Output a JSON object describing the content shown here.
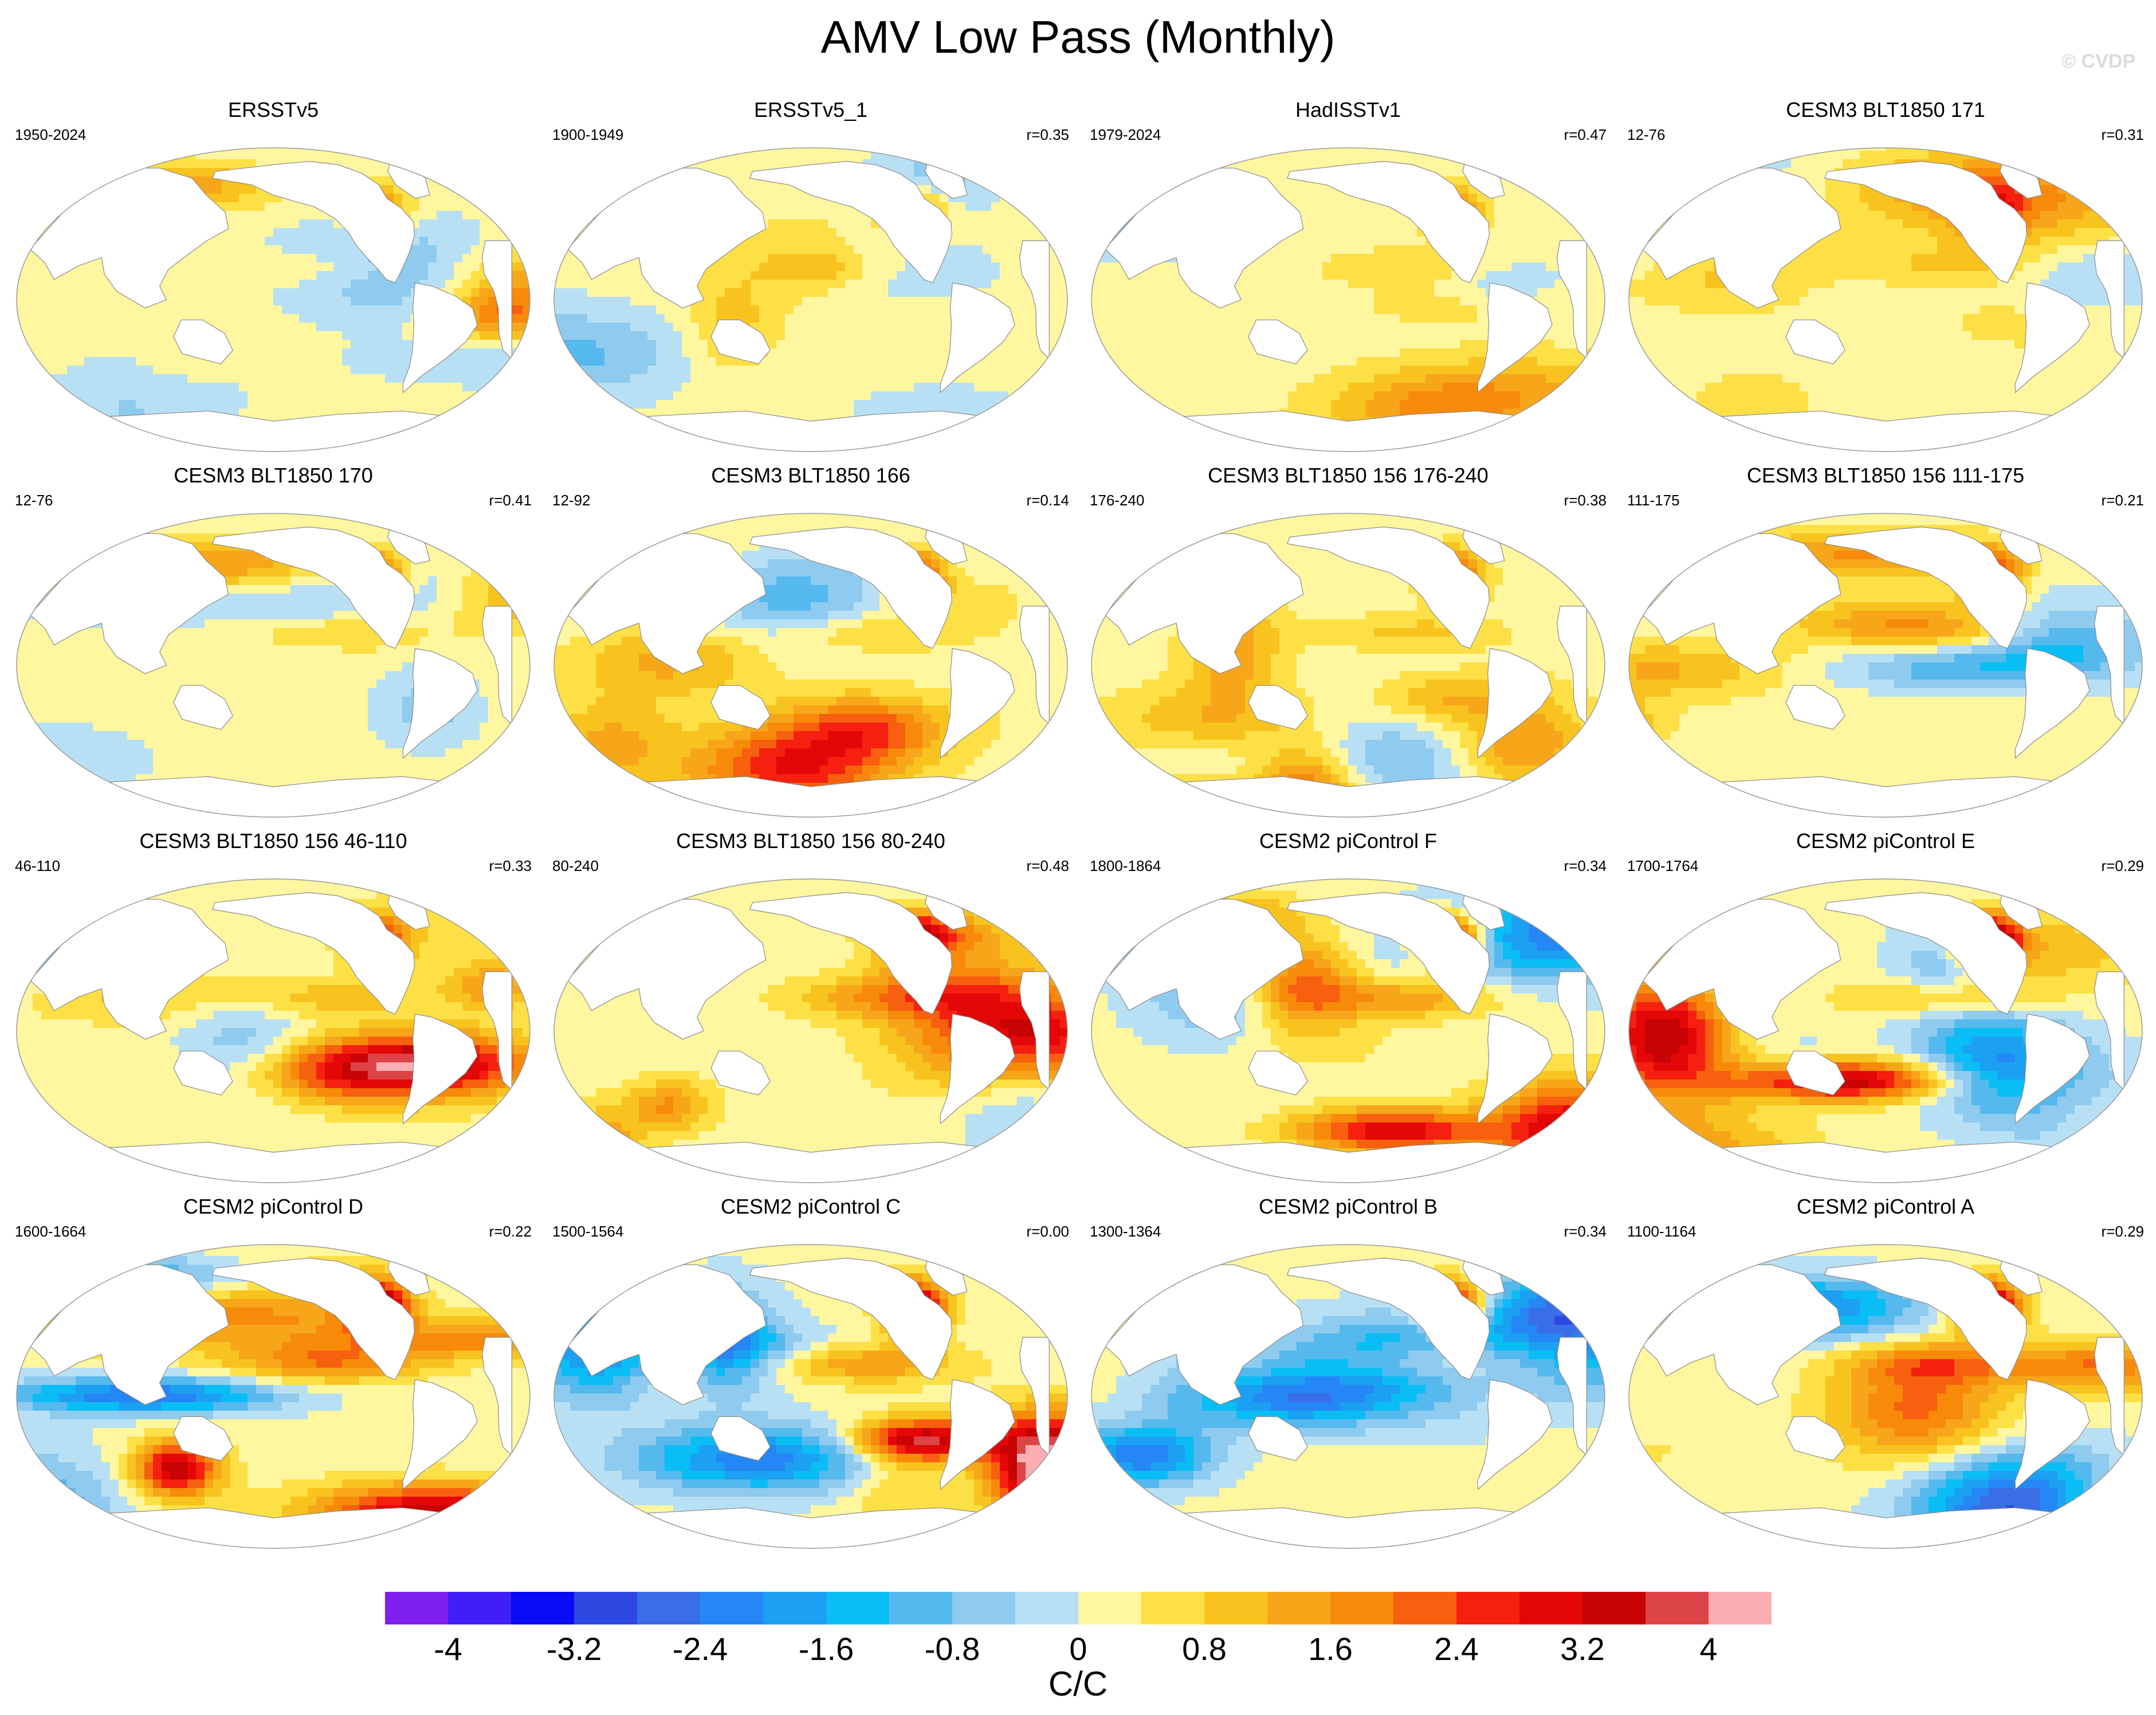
{
  "title": "AMV Low Pass (Monthly)",
  "watermark": "© CVDP",
  "chart_data": {
    "type": "heatmap",
    "description_kind": "global SST regression maps (Robinson projection, Pacific-centered)",
    "units": "C/C",
    "levels": [
      -4.4,
      -4,
      -3.6,
      -3.2,
      -2.8,
      -2.4,
      -2,
      -1.6,
      -1.2,
      -0.8,
      -0.4,
      0,
      0.4,
      0.8,
      1.2,
      1.6,
      2,
      2.4,
      2.8,
      3.2,
      3.6,
      4,
      4.4
    ],
    "tick_labels": [
      "-4",
      "-3.2",
      "-2.4",
      "-1.6",
      "-0.8",
      "0",
      "0.8",
      "1.6",
      "2.4",
      "3.2",
      "4"
    ],
    "colors": [
      "#7f1ff0",
      "#3f1ff5",
      "#0a0af5",
      "#2c48e0",
      "#3a6ee6",
      "#2487f5",
      "#1ca0f2",
      "#0abef5",
      "#55b9ee",
      "#8ecbef",
      "#b8e0f4",
      "#fff6a0",
      "#fde046",
      "#f8c31e",
      "#f7a61a",
      "#f88a0a",
      "#f6600e",
      "#f52010",
      "#e40707",
      "#c70303",
      "#dc4448",
      "#faaeb2"
    ],
    "panels": [
      {
        "name": "ERSSTv5",
        "years": "1950-2024",
        "r": ""
      },
      {
        "name": "ERSSTv5_1",
        "years": "1900-1949",
        "r": "r=0.35"
      },
      {
        "name": "HadISSTv1",
        "years": "1979-2024",
        "r": "r=0.47"
      },
      {
        "name": "CESM3 BLT1850 171",
        "years": "12-76",
        "r": "r=0.31"
      },
      {
        "name": "CESM3 BLT1850 170",
        "years": "12-76",
        "r": "r=0.41"
      },
      {
        "name": "CESM3 BLT1850 166",
        "years": "12-92",
        "r": "r=0.14"
      },
      {
        "name": "CESM3 BLT1850 156 176-240",
        "years": "176-240",
        "r": "r=0.38"
      },
      {
        "name": "CESM3 BLT1850 156 111-175",
        "years": "111-175",
        "r": "r=0.21"
      },
      {
        "name": "CESM3 BLT1850 156 46-110",
        "years": "46-110",
        "r": "r=0.33"
      },
      {
        "name": "CESM3 BLT1850 156 80-240",
        "years": "80-240",
        "r": "r=0.48"
      },
      {
        "name": "CESM2 piControl F",
        "years": "1800-1864",
        "r": "r=0.34"
      },
      {
        "name": "CESM2 piControl E",
        "years": "1700-1764",
        "r": "r=0.29"
      },
      {
        "name": "CESM2 piControl D",
        "years": "1600-1664",
        "r": "r=0.22"
      },
      {
        "name": "CESM2 piControl C",
        "years": "1500-1564",
        "r": "r=0.00"
      },
      {
        "name": "CESM2 piControl B",
        "years": "1300-1364",
        "r": "r=0.34"
      },
      {
        "name": "CESM2 piControl A",
        "years": "1100-1164",
        "r": "r=0.29"
      }
    ]
  }
}
